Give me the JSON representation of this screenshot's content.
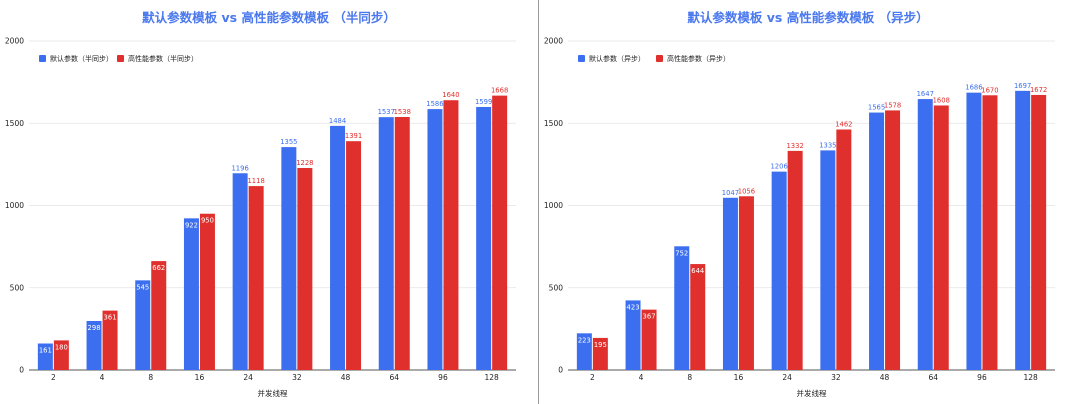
{
  "colors": {
    "series1": "#3c6ff0",
    "series2": "#e0302d",
    "title": "#4a78ee",
    "grid": "#e3e3e3"
  },
  "chart_data": [
    {
      "type": "bar",
      "title": "默认参数模板 vs 高性能参数模板 （半同步）",
      "xlabel": "并发线程",
      "ylabel": "",
      "ylim": [
        0,
        2000
      ],
      "yticks": [
        0,
        500,
        1000,
        1500,
        2000
      ],
      "grid": true,
      "legend_position": "top-left",
      "categories": [
        "2",
        "4",
        "8",
        "16",
        "24",
        "32",
        "48",
        "64",
        "96",
        "128"
      ],
      "series": [
        {
          "name": "默认参数（半同步）",
          "values": [
            161,
            298,
            545,
            922,
            1196,
            1355,
            1484,
            1537,
            1586,
            1599
          ]
        },
        {
          "name": "高性能参数（半同步）",
          "values": [
            180,
            361,
            662,
            950,
            1118,
            1228,
            1391,
            1538,
            1640,
            1668
          ]
        }
      ]
    },
    {
      "type": "bar",
      "title": "默认参数模板 vs 高性能参数模板 （异步）",
      "xlabel": "并发线程",
      "ylabel": "",
      "ylim": [
        0,
        2000
      ],
      "yticks": [
        0,
        500,
        1000,
        1500,
        2000
      ],
      "grid": true,
      "legend_position": "top-left",
      "categories": [
        "2",
        "4",
        "8",
        "16",
        "24",
        "32",
        "48",
        "64",
        "96",
        "128"
      ],
      "series": [
        {
          "name": "默认参数（异步）",
          "values": [
            223,
            423,
            752,
            1047,
            1206,
            1335,
            1565,
            1647,
            1686,
            1697
          ]
        },
        {
          "name": "高性能参数（异步）",
          "values": [
            195,
            367,
            644,
            1056,
            1332,
            1462,
            1578,
            1608,
            1670,
            1672
          ]
        }
      ]
    }
  ]
}
